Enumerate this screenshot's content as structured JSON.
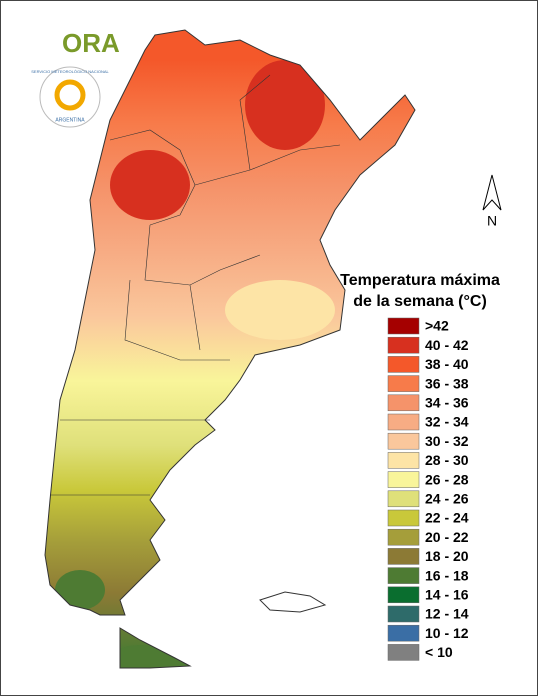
{
  "logo": {
    "text": "ORA",
    "seal_text": "SERVICIO METEOROLÓGICO NACIONAL",
    "seal_country": "ARGENTINA"
  },
  "north_label": "N",
  "legend": {
    "title_lines": [
      "Temperatura máxima",
      "de la semana (°C)"
    ],
    "items": [
      {
        "label": ">42",
        "color": "#a50000"
      },
      {
        "label": "40 - 42",
        "color": "#d7301f"
      },
      {
        "label": "38 - 40",
        "color": "#f4582a"
      },
      {
        "label": "36 - 38",
        "color": "#f77b4a"
      },
      {
        "label": "34 - 36",
        "color": "#f5936a"
      },
      {
        "label": "32 - 34",
        "color": "#f7ac84"
      },
      {
        "label": "30 - 32",
        "color": "#fac79c"
      },
      {
        "label": "28 - 30",
        "color": "#fde4a6"
      },
      {
        "label": "26 - 28",
        "color": "#f9f59a"
      },
      {
        "label": "24 - 26",
        "color": "#dfe07a"
      },
      {
        "label": "22 - 24",
        "color": "#c9c83a"
      },
      {
        "label": "20 - 22",
        "color": "#a59e3a"
      },
      {
        "label": "18 - 20",
        "color": "#8c7a35"
      },
      {
        "label": "16 - 18",
        "color": "#4e7b33"
      },
      {
        "label": "14 - 16",
        "color": "#0a6e2f"
      },
      {
        "label": "12 - 14",
        "color": "#2e6b6a"
      },
      {
        "label": "10 - 12",
        "color": "#3a6ea5"
      },
      {
        "label": "< 10",
        "color": "#808080"
      }
    ]
  }
}
